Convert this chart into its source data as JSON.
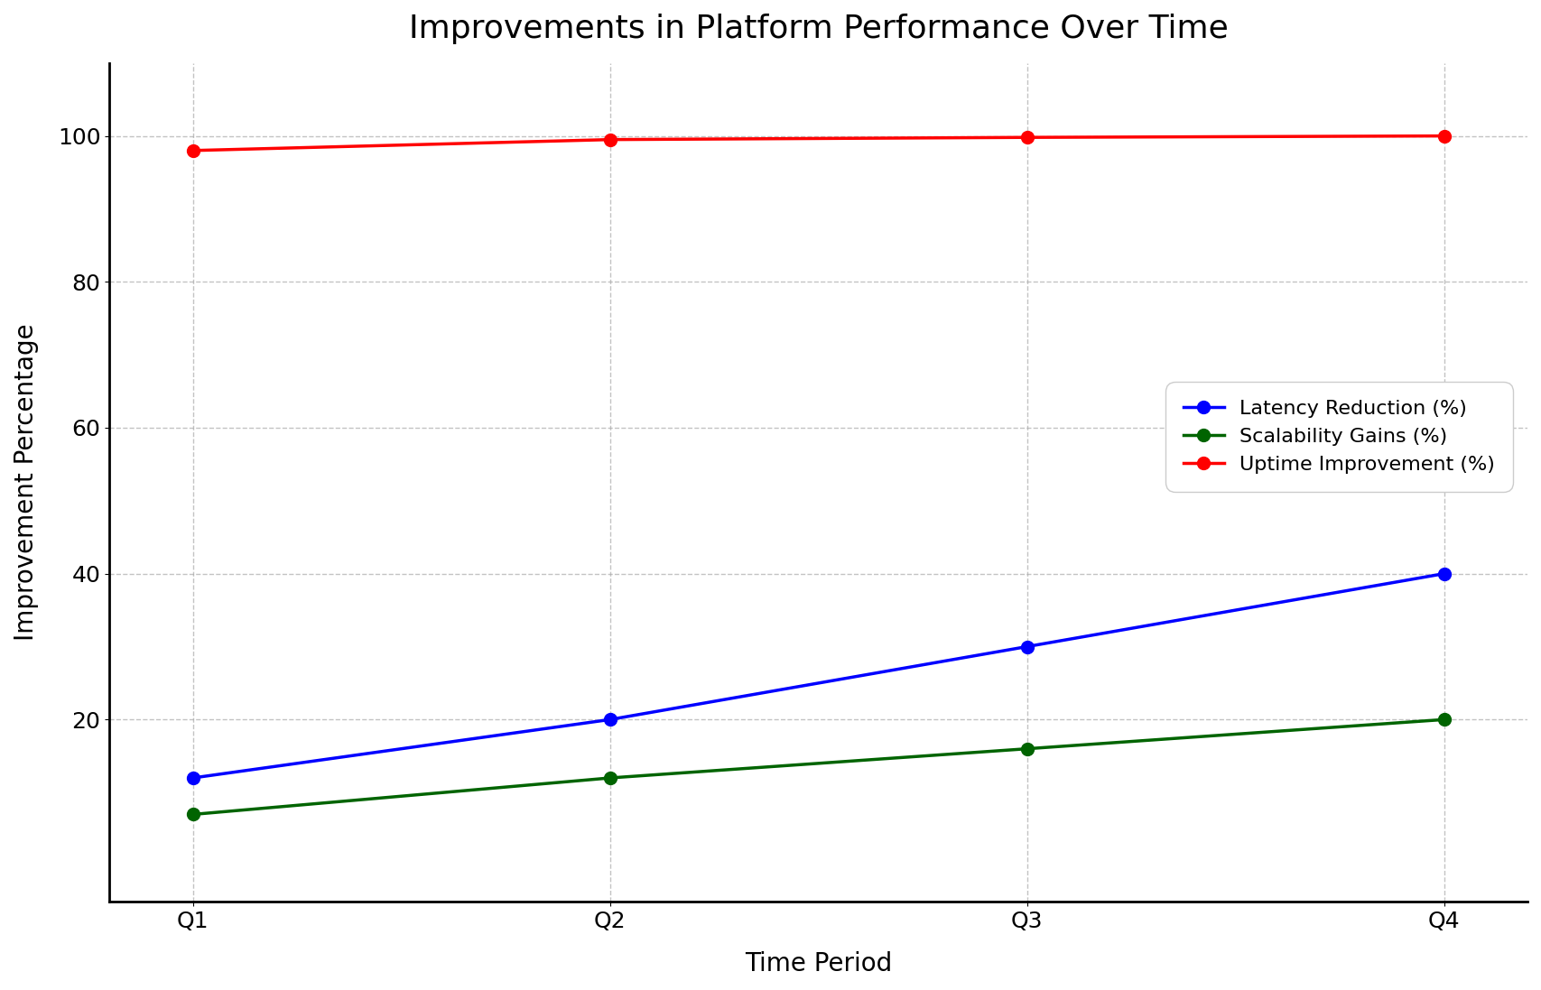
{
  "title": "Improvements in Platform Performance Over Time",
  "xlabel": "Time Period",
  "ylabel": "Improvement Percentage",
  "categories": [
    "Q1",
    "Q2",
    "Q3",
    "Q4"
  ],
  "series": [
    {
      "label": "Latency Reduction (%)",
      "values": [
        12,
        20,
        30,
        40
      ],
      "color": "#0000ff",
      "marker": "o",
      "zorder": 3
    },
    {
      "label": "Scalability Gains (%)",
      "values": [
        7,
        12,
        16,
        20
      ],
      "color": "#006400",
      "marker": "o",
      "zorder": 3
    },
    {
      "label": "Uptime Improvement (%)",
      "values": [
        98,
        99.5,
        99.8,
        100
      ],
      "color": "#ff0000",
      "marker": "o",
      "zorder": 3
    }
  ],
  "ylim": [
    -5,
    110
  ],
  "yticks": [
    20,
    40,
    60,
    80,
    100
  ],
  "grid_color": "#aaaaaa",
  "grid_linestyle": "--",
  "grid_alpha": 0.7,
  "legend_fontsize": 16,
  "title_fontsize": 26,
  "axis_label_fontsize": 20,
  "tick_fontsize": 18,
  "line_width": 2.5,
  "marker_size": 10,
  "background_color": "#ffffff"
}
